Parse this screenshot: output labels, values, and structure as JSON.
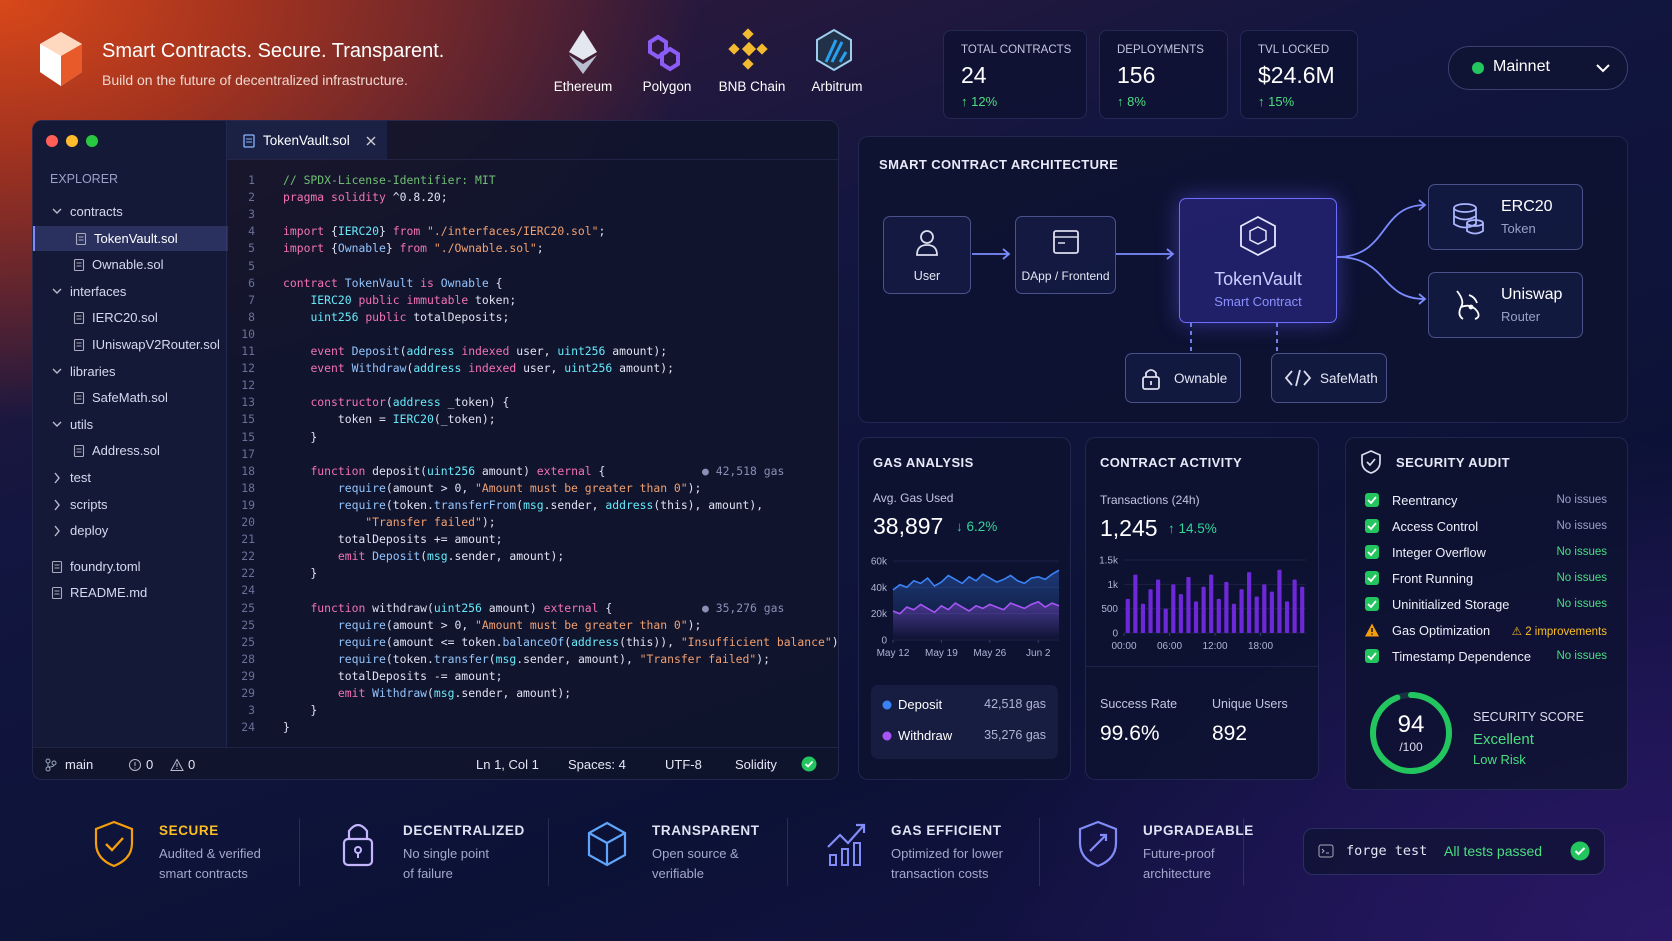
{
  "header": {
    "title": "Smart Contracts. Secure. Transparent.",
    "subtitle": "Build on the future of decentralized infrastructure."
  },
  "chains": [
    "Ethereum",
    "Polygon",
    "BNB Chain",
    "Arbitrum"
  ],
  "stats": [
    {
      "label": "TOTAL CONTRACTS",
      "value": "24",
      "change": "12%"
    },
    {
      "label": "DEPLOYMENTS",
      "value": "156",
      "change": "8%"
    },
    {
      "label": "TVL LOCKED",
      "value": "$24.6M",
      "change": "15%"
    }
  ],
  "network": "Mainnet",
  "editor": {
    "explorer_title": "EXPLORER",
    "tree": [
      {
        "label": "contracts",
        "depth": 0,
        "kind": "folder",
        "open": true
      },
      {
        "label": "TokenVault.sol",
        "depth": 1,
        "kind": "file",
        "selected": true
      },
      {
        "label": "Ownable.sol",
        "depth": 1,
        "kind": "file"
      },
      {
        "label": "interfaces",
        "depth": 0,
        "kind": "folder",
        "open": true
      },
      {
        "label": "IERC20.sol",
        "depth": 1,
        "kind": "file"
      },
      {
        "label": "IUniswapV2Router.sol",
        "depth": 1,
        "kind": "file"
      },
      {
        "label": "libraries",
        "depth": 0,
        "kind": "folder",
        "open": true
      },
      {
        "label": "SafeMath.sol",
        "depth": 1,
        "kind": "file"
      },
      {
        "label": "utils",
        "depth": 0,
        "kind": "folder",
        "open": true
      },
      {
        "label": "Address.sol",
        "depth": 1,
        "kind": "file"
      },
      {
        "label": "test",
        "depth": 0,
        "kind": "folder",
        "open": false
      },
      {
        "label": "scripts",
        "depth": 0,
        "kind": "folder",
        "open": false
      },
      {
        "label": "deploy",
        "depth": 0,
        "kind": "folder",
        "open": false
      },
      {
        "label": "foundry.toml",
        "depth": 0,
        "kind": "file"
      },
      {
        "label": "README.md",
        "depth": 0,
        "kind": "file"
      }
    ],
    "tab": "TokenVault.sol",
    "code": [
      {
        "num": "1",
        "text": "// SPDX-License-Identifier: MIT"
      },
      {
        "num": "2",
        "text": "pragma solidity ^0.8.20;"
      },
      {
        "num": "3"
      },
      {
        "num": "4",
        "text": "import {IERC20} from \"./interfaces/IERC20.sol\";"
      },
      {
        "num": "5",
        "text": "import {Ownable} from \"./Ownable.sol\";"
      },
      {
        "num": "5"
      },
      {
        "num": "6",
        "text": "contract TokenVault is Ownable {"
      },
      {
        "num": "7",
        "text": "    IERC20 public immutable token;"
      },
      {
        "num": "8",
        "text": "    uint256 public totalDeposits;"
      },
      {
        "num": "10"
      },
      {
        "num": "11",
        "text": "    event Deposit(address indexed user, uint256 amount);"
      },
      {
        "num": "12",
        "text": "    event Withdraw(address indexed user, uint256 amount);"
      },
      {
        "num": "12"
      },
      {
        "num": "13",
        "text": "    constructor(address _token) {"
      },
      {
        "num": "15",
        "text": "        token = IERC20(_token);"
      },
      {
        "num": "15",
        "text": "    }"
      },
      {
        "num": "17"
      },
      {
        "num": "18",
        "text": "    function deposit(uint256 amount) external {",
        "gas": "42,518 gas"
      },
      {
        "num": "18",
        "text": "        require(amount > 0, \"Amount must be greater than 0\");"
      },
      {
        "num": "19",
        "text": "        require(token.transferFrom(msg.sender, address(this), amount),"
      },
      {
        "num": "20",
        "text": "            \"Transfer failed\");"
      },
      {
        "num": "21",
        "text": "        totalDeposits += amount;"
      },
      {
        "num": "22",
        "text": "        emit Deposit(msg.sender, amount);"
      },
      {
        "num": "22",
        "text": "    }"
      },
      {
        "num": "24"
      },
      {
        "num": "25",
        "text": "    function withdraw(uint256 amount) external {",
        "gas": "35,276 gas"
      },
      {
        "num": "25",
        "text": "        require(amount > 0, \"Amount must be greater than 0\");"
      },
      {
        "num": "25",
        "text": "        require(amount <= token.balanceOf(address(this)), \"Insufficient balance\");"
      },
      {
        "num": "28",
        "text": "        require(token.transfer(msg.sender, amount), \"Transfer failed\");"
      },
      {
        "num": "29",
        "text": "        totalDeposits -= amount;"
      },
      {
        "num": "29",
        "text": "        emit Withdraw(msg.sender, amount);"
      },
      {
        "num": "3",
        "text": "    }"
      },
      {
        "num": "24",
        "text": "}"
      }
    ],
    "status": {
      "branch": "main",
      "errors": "0",
      "warnings": "0",
      "position": "Ln 1, Col 1",
      "spaces": "Spaces: 4",
      "encoding": "UTF-8",
      "language": "Solidity"
    }
  },
  "architecture": {
    "title": "SMART CONTRACT ARCHITECTURE",
    "user": "User",
    "dapp": "DApp / Frontend",
    "vault": "TokenVault",
    "vault_sub": "Smart Contract",
    "erc20": "ERC20",
    "erc20_sub": "Token",
    "uniswap": "Uniswap",
    "uniswap_sub": "Router",
    "ownable": "Ownable",
    "safemath": "SafeMath"
  },
  "gas_analysis": {
    "title": "GAS ANALYSIS",
    "metric_label": "Avg. Gas Used",
    "metric": "38,897",
    "change": "6.2%",
    "chart_data": {
      "type": "line",
      "xlim": [
        0,
        24
      ],
      "xticks": [
        {
          "value": 0,
          "label": "May 12"
        },
        {
          "value": 7,
          "label": "May 19"
        },
        {
          "value": 14,
          "label": "May 26"
        },
        {
          "value": 21,
          "label": "Jun 2"
        }
      ],
      "ylim": [
        0,
        60000
      ],
      "yticks": [
        {
          "value": 0,
          "label": "0"
        },
        {
          "value": 20000,
          "label": "20k"
        },
        {
          "value": 40000,
          "label": "40k"
        },
        {
          "value": 60000,
          "label": "60k"
        }
      ],
      "series": [
        {
          "name": "Deposit",
          "color": "#3b82f6",
          "total": "42,518 gas",
          "values": [
            38000,
            42000,
            40000,
            45000,
            43000,
            47000,
            41000,
            44000,
            49000,
            46000,
            43000,
            48000,
            45000,
            50000,
            47000,
            44000,
            46000,
            49000,
            45000,
            43000,
            47000,
            48000,
            46000,
            50000,
            53000
          ]
        },
        {
          "name": "Withdraw",
          "color": "#a855f7",
          "total": "35,276 gas",
          "values": [
            22000,
            20000,
            25000,
            23000,
            27000,
            24000,
            21000,
            26000,
            23000,
            28000,
            25000,
            22000,
            26000,
            24000,
            27000,
            25000,
            23000,
            28000,
            26000,
            24000,
            27000,
            29000,
            25000,
            28000,
            26000
          ]
        }
      ]
    }
  },
  "activity": {
    "title": "CONTRACT ACTIVITY",
    "metric_label": "Transactions (24h)",
    "metric": "1,245",
    "change": "14.5%",
    "chart_data": {
      "type": "bar",
      "xlim": [
        0,
        24
      ],
      "xticks": [
        {
          "value": 0,
          "label": "00:00"
        },
        {
          "value": 6,
          "label": "06:00"
        },
        {
          "value": 12,
          "label": "12:00"
        },
        {
          "value": 18,
          "label": "18:00"
        }
      ],
      "ylim": [
        0,
        1500
      ],
      "yticks": [
        0,
        500,
        {
          "value": 1000,
          "label": "1k"
        },
        {
          "value": 1500,
          "label": "1.5k"
        }
      ],
      "color": "#6d28d9",
      "values": [
        700,
        1200,
        600,
        900,
        1100,
        500,
        1000,
        800,
        1150,
        650,
        950,
        1200,
        700,
        1050,
        600,
        900,
        1250,
        750,
        1000,
        850,
        1300,
        650,
        1100,
        950
      ]
    },
    "success_label": "Success Rate",
    "success": "99.6%",
    "users_label": "Unique Users",
    "users": "892"
  },
  "security": {
    "title": "SECURITY AUDIT",
    "items": [
      {
        "name": "Reentrancy",
        "status": "No issues",
        "ok": true
      },
      {
        "name": "Access Control",
        "status": "No issues",
        "ok": true
      },
      {
        "name": "Integer Overflow",
        "status": "No issues",
        "ok": true
      },
      {
        "name": "Front Running",
        "status": "No issues",
        "ok": true
      },
      {
        "name": "Uninitialized Storage",
        "status": "No issues",
        "ok": true
      },
      {
        "name": "Gas Optimization",
        "status": "2 improvements",
        "ok": false
      },
      {
        "name": "Timestamp Dependence",
        "status": "No issues",
        "ok": true
      }
    ],
    "score": 94,
    "score_max": {
      "value": 100,
      "label": "/100"
    },
    "score_title": "SECURITY SCORE",
    "rating": "Excellent",
    "risk": "Low Risk"
  },
  "features": [
    {
      "title": "SECURE",
      "desc": [
        "Audited & verified",
        "smart contracts"
      ]
    },
    {
      "title": "DECENTRALIZED",
      "desc": [
        "No single point",
        "of failure"
      ]
    },
    {
      "title": "TRANSPARENT",
      "desc": [
        "Open source &",
        "verifiable"
      ]
    },
    {
      "title": "GAS EFFICIENT",
      "desc": [
        "Optimized for lower",
        "transaction costs"
      ]
    },
    {
      "title": "UPGRADEABLE",
      "desc": [
        "Future-proof",
        "architecture"
      ]
    }
  ],
  "test": {
    "command": "forge test",
    "result": "All tests passed"
  }
}
